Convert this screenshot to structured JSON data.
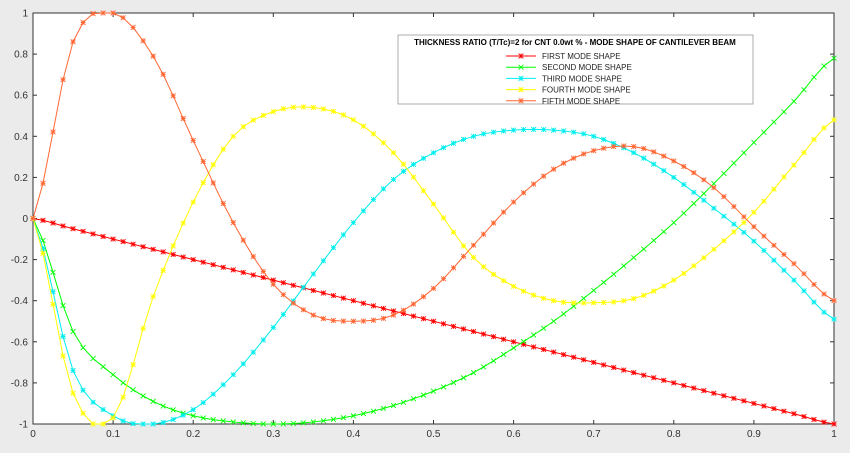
{
  "chart_data": {
    "type": "line",
    "title": "THICKNESS RATIO (T/Tc)=2 for CNT 0.0wt % - MODE SHAPE OF CANTILEVER BEAM",
    "xlabel": "",
    "ylabel": "",
    "xlim": [
      0,
      1
    ],
    "ylim": [
      -1,
      1
    ],
    "x_ticks": [
      "0",
      "0.1",
      "0.2",
      "0.3",
      "0.4",
      "0.5",
      "0.6",
      "0.7",
      "0.8",
      "0.9",
      "1"
    ],
    "y_ticks": [
      "1",
      "0.8",
      "0.6",
      "0.4",
      "0.2",
      "0",
      "-0.2",
      "-0.4",
      "-0.6",
      "-0.8",
      "-1"
    ],
    "grid": false,
    "legend_position": "top-right",
    "x": [
      0,
      0.05,
      0.1,
      0.15,
      0.2,
      0.25,
      0.3,
      0.35,
      0.4,
      0.45,
      0.5,
      0.55,
      0.6,
      0.65,
      0.7,
      0.75,
      0.8,
      0.85,
      0.9,
      0.95,
      1.0
    ],
    "series": [
      {
        "name": "FIRST MODE SHAPE",
        "color": "#ff0000",
        "marker": "star",
        "values": [
          0,
          -0.05,
          -0.1,
          -0.15,
          -0.2,
          -0.25,
          -0.3,
          -0.35,
          -0.4,
          -0.45,
          -0.5,
          -0.55,
          -0.6,
          -0.65,
          -0.7,
          -0.75,
          -0.8,
          -0.85,
          -0.9,
          -0.95,
          -1.0
        ]
      },
      {
        "name": "SECOND MODE SHAPE",
        "color": "#00ff00",
        "marker": "x",
        "values": [
          0,
          -0.55,
          -0.76,
          -0.89,
          -0.96,
          -0.99,
          -1.0,
          -0.99,
          -0.96,
          -0.91,
          -0.84,
          -0.75,
          -0.63,
          -0.5,
          -0.35,
          -0.19,
          -0.02,
          0.17,
          0.37,
          0.57,
          0.78
        ]
      },
      {
        "name": "THIRD MODE SHAPE",
        "color": "#00eeee",
        "marker": "star",
        "values": [
          0,
          -0.74,
          -0.96,
          -1.0,
          -0.93,
          -0.76,
          -0.53,
          -0.27,
          -0.02,
          0.19,
          0.32,
          0.4,
          0.43,
          0.43,
          0.4,
          0.32,
          0.2,
          0.05,
          -0.11,
          -0.3,
          -0.49
        ]
      },
      {
        "name": "FOURTH MODE SHAPE",
        "color": "#ffff00",
        "marker": "star",
        "values": [
          0,
          -0.85,
          -0.97,
          -0.38,
          0.08,
          0.4,
          0.52,
          0.54,
          0.48,
          0.32,
          0.07,
          -0.19,
          -0.33,
          -0.4,
          -0.41,
          -0.39,
          -0.3,
          -0.15,
          0.03,
          0.26,
          0.48
        ]
      },
      {
        "name": "FIFTH MODE SHAPE",
        "color": "#ff6633",
        "marker": "star",
        "values": [
          0,
          0.86,
          1.0,
          0.79,
          0.38,
          -0.02,
          -0.32,
          -0.47,
          -0.5,
          -0.47,
          -0.34,
          -0.13,
          0.08,
          0.24,
          0.33,
          0.35,
          0.28,
          0.15,
          -0.04,
          -0.22,
          -0.4
        ]
      }
    ]
  }
}
